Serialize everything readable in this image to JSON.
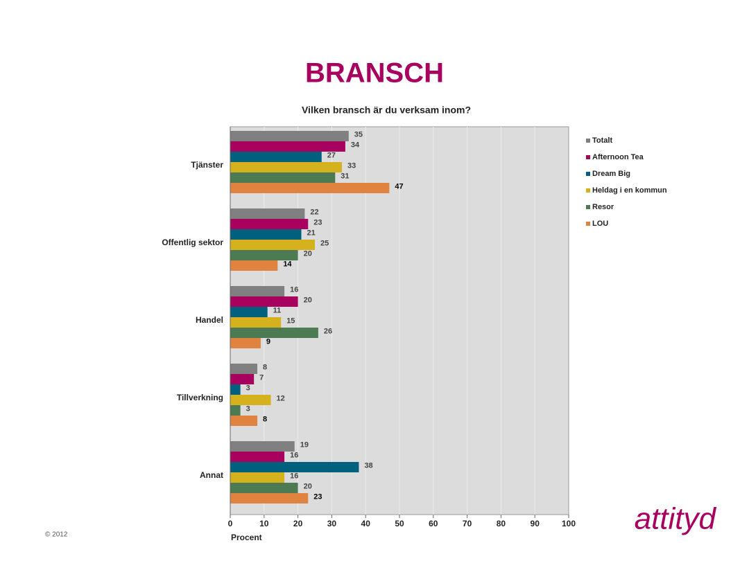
{
  "page_title": "BRANSCH",
  "footer": "© 2012",
  "logo": "attityd",
  "chart_data": {
    "type": "hbar",
    "title": "Vilken bransch är du verksam inom?",
    "xlabel": "Procent",
    "categories": [
      "Tjänster",
      "Offentlig sektor",
      "Handel",
      "Tillverkning",
      "Annat"
    ],
    "series": [
      {
        "name": "Totalt",
        "color": "#808080",
        "values": [
          35,
          22,
          16,
          8,
          19
        ]
      },
      {
        "name": "Afternoon Tea",
        "color": "#a8005e",
        "values": [
          34,
          23,
          20,
          7,
          16
        ]
      },
      {
        "name": "Dream Big",
        "color": "#00607e",
        "values": [
          27,
          21,
          11,
          3,
          38
        ]
      },
      {
        "name": "Heldag i en kommun",
        "color": "#d5b11e",
        "values": [
          33,
          25,
          15,
          12,
          16
        ]
      },
      {
        "name": "Resor",
        "color": "#4c7a52",
        "values": [
          31,
          20,
          26,
          3,
          20
        ]
      },
      {
        "name": "LOU",
        "color": "#df8340",
        "values": [
          47,
          14,
          9,
          8,
          23
        ]
      }
    ],
    "xlim": [
      0,
      100
    ],
    "xticks": [
      0,
      10,
      20,
      30,
      40,
      50,
      60,
      70,
      80,
      90,
      100
    ],
    "grid": true,
    "legend": "right"
  }
}
